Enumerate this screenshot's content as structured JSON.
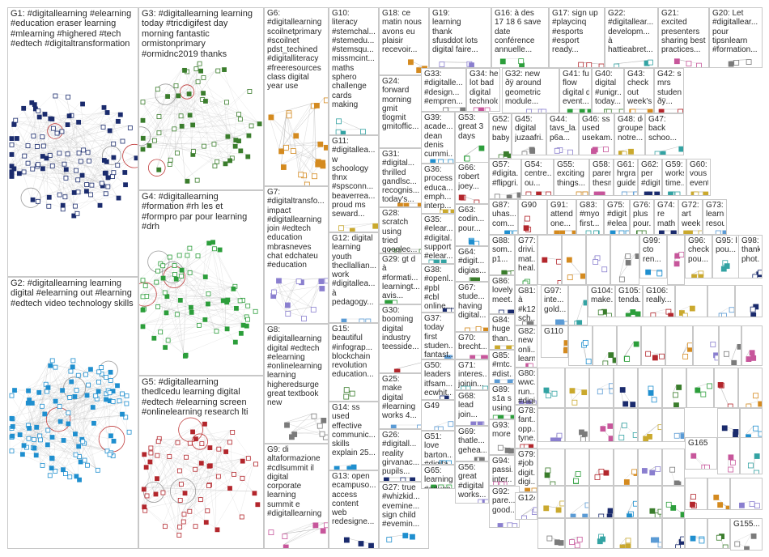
{
  "groups": [
    {
      "id": "G1",
      "label": "G1: #digitallearning #elearning\n#education eraser learning\n#mlearning #highered #tech\n#edtech #digitaltransformation"
    },
    {
      "id": "G2",
      "label": "G2: #digitallearning learning\ndigital #elearning out #learning\n#edtech video technology skills"
    },
    {
      "id": "G3",
      "label": "G3: #digitallearning learning\ntoday #tricdigifest day\nmorning fantastic\normistonprimary\n#ormidnc2019 thanks"
    },
    {
      "id": "G4",
      "label": "G4: #digitallearning\n#formation #rh les et\n#formpro par pour learning\n#drh"
    },
    {
      "id": "G5",
      "label": "G5: #digitallearning\nthedlcedu learning digital\n#edtech #elearning screen\n#onlinelearning research lti"
    },
    {
      "id": "G6",
      "label": "G6:\n#digitallearning\nscoilnetprimary\n#scoilnet\npdst_techined\n#digitalliteracy\n#freeresources\nclass digital\nyear use"
    },
    {
      "id": "G7",
      "label": "G7:\n#digitaltransfo...\nimpact\n#digitallearning\njoin #edtech\neducation\nmbrasneves\nchat edchateu\n#education"
    },
    {
      "id": "G8",
      "label": "G8:\n#digitallearning\ndigital #edtech\n#elearning\n#onlinelearning\nlearning\nhigheredsurge\ngreat textbook\nnew"
    },
    {
      "id": "G9",
      "label": "G9: di\naltaformazione\n#cdlsummit il\ndigital\ncorporate\nlearning\nsummit e\n#digitallearning"
    },
    {
      "id": "G10",
      "label": "G10:\nliteracy\n#stemchal...\n#stemedu...\n#stemsqu...\nmissmcint...\nmaths\nsphero\nchallenge\ncards\nmaking"
    },
    {
      "id": "G11",
      "label": "G11:\n#digitallea...\nw\nschoology\nthnx\n#spsconn...\nbeaverrea...\nproud ms\nseward..."
    },
    {
      "id": "G12",
      "label": "G12: digital\nlearning\nyouth\nthecllallian...\nwork\n#digitallea...\nà\npedagogy..."
    },
    {
      "id": "G13",
      "label": "G13: open\necampuso...\naccess\ncontent\nweb\nredesigne..."
    },
    {
      "id": "G14",
      "label": "G14: ss\nused\neffective\ncommunic...\nskills\nexplain 25..."
    },
    {
      "id": "G15",
      "label": "G15:\nbeautiful\n#infograp...\nblockchain\nrevolution\neducation..."
    },
    {
      "id": "G16",
      "label": "G16: à des\n17 18 6 save\ndate\nconférence\nannuelle..."
    },
    {
      "id": "G17",
      "label": "G17: sign up\n#playcinq\n#esports\n#esport\nready..."
    },
    {
      "id": "G18",
      "label": "G18: ce\nmatin nous\navons eu\nplaisir\nrecevoir..."
    },
    {
      "id": "G19",
      "label": "G19:\nlearning\nthank\nsfusddot lots\ndigital faire..."
    },
    {
      "id": "G20",
      "label": "G20: Let\n#digitallear...\npour\ntipsnlearn\n#formation..."
    },
    {
      "id": "G21",
      "label": "G21:\nexcited\npresenters\nsharing best\npractices..."
    },
    {
      "id": "G22",
      "label": "G22:\n#digitallear...\ndevelopm...\nà\nhattieabret..."
    },
    {
      "id": "G24",
      "label": "G24:\nforward\nmorning\ngmit\ntlogmit\ngmitoffic..."
    },
    {
      "id": "G25",
      "label": "G25:\nmake\ndigital\n#learning\nworks 4..."
    },
    {
      "id": "G26",
      "label": "G26:\n#digitall...\nreality\ngirvanac...\npupils..."
    },
    {
      "id": "G27",
      "label": "G27: true\n#whizkid...\nevemine...\nsign child\n#evemin..."
    },
    {
      "id": "G28",
      "label": "G28:\nscratch\nusing\ntried\ngooglec..."
    },
    {
      "id": "G29",
      "label": "G29: gt d\nà\n#formati...\nlearningt...\navis..."
    },
    {
      "id": "G30",
      "label": "G30:\nbooming\ndigital\nindustry\nteesside..."
    },
    {
      "id": "G31",
      "label": "G31:\n#digital...\nthrilled\ngandlsc...\nrecognis...\ntoday's..."
    },
    {
      "id": "G32",
      "label": "G32: new\nðÿ around\ngeometric\nmodule..."
    },
    {
      "id": "G33",
      "label": "G33:\n#digitalle...\n#design...\n#empren..."
    },
    {
      "id": "G34",
      "label": "G34: hear\nlot bad\ndigital\ntechnolo..."
    },
    {
      "id": "G35",
      "label": "G35:\n#elear...\n#digital...\nsupport\n#elear..."
    },
    {
      "id": "G36",
      "label": "G36:\nprocess\neduca...\nemph...\ninterp..."
    },
    {
      "id": "G37",
      "label": "G37:\ntoday\nfirst\nstuden...\nfantast..."
    },
    {
      "id": "G38",
      "label": "G38:\n#openl...\n#pbl\n#cbl\nonline..."
    },
    {
      "id": "G39",
      "label": "G39:\nacade...\ndean\ndenis\ncummi..."
    },
    {
      "id": "G40",
      "label": "G40:\ndigital\n#unigr...\ntoday..."
    },
    {
      "id": "G41",
      "label": "G41: full\nflow\ndigital d\nevent..."
    },
    {
      "id": "G42",
      "label": "G42: s\nmrs\nstudents\nðÿ..."
    },
    {
      "id": "G43",
      "label": "G43:\ncheck\nout\nweek's..."
    },
    {
      "id": "G44",
      "label": "G44:\ntavs_la...\np6a..."
    },
    {
      "id": "G45",
      "label": "G45:\ndigital\njuzaafri..."
    },
    {
      "id": "G46",
      "label": "G46: ss\nused\nusekam..."
    },
    {
      "id": "G47",
      "label": "G47:\nback\nschoo..."
    },
    {
      "id": "G48",
      "label": "G48: des\ngroupei...\nnotre..."
    },
    {
      "id": "G49",
      "label": "G49"
    },
    {
      "id": "G50",
      "label": "G50:\nleaders\nitfsam...\necwhit..."
    },
    {
      "id": "G51",
      "label": "G51:\nlove\nbarton...\n#digita..."
    },
    {
      "id": "G52",
      "label": "G52: à\nnew\nbaby..."
    },
    {
      "id": "G53",
      "label": "G53:\ngreat 3\ndays"
    },
    {
      "id": "G54",
      "label": "G54:\ncentre...\nou..."
    },
    {
      "id": "G55",
      "label": "G55:\nexciting\nthings..."
    },
    {
      "id": "G56",
      "label": "G56:\ngreat\n#digital\nworks..."
    },
    {
      "id": "G57",
      "label": "G57:\n#digita...\n#flipgri..."
    },
    {
      "id": "G58",
      "label": "G58:\nparents\nthesm..."
    },
    {
      "id": "G59",
      "label": "G59:\nworks...\ntime..."
    },
    {
      "id": "G60",
      "label": "G60:\nvous\nevent..."
    },
    {
      "id": "G61",
      "label": "G61:\nhrgrap...\nguide..."
    },
    {
      "id": "G62",
      "label": "G62: di\nper\n#digita..."
    },
    {
      "id": "G63",
      "label": "G63:\ncodin...\npour..."
    },
    {
      "id": "G64",
      "label": "G64:\n#digit...\ndigias..."
    },
    {
      "id": "G65",
      "label": "G65:\nlearning\n#educa..."
    },
    {
      "id": "G66",
      "label": "G66:\nrobert\njoey..."
    },
    {
      "id": "G67",
      "label": "G67:\nstude...\nhaving\ndigital..."
    },
    {
      "id": "G68",
      "label": "G68:\nlead\njoin..."
    },
    {
      "id": "G69",
      "label": "G69:\nthatle...\ngeheа..."
    },
    {
      "id": "G70",
      "label": "G70:\nbrecht..."
    },
    {
      "id": "G71",
      "label": "G71:\ninteres...\njoinin..."
    },
    {
      "id": "G72",
      "label": "G72: 2\nart\nweek..."
    },
    {
      "id": "G73",
      "label": "G73: e\nlearni...\nresou..."
    },
    {
      "id": "G74",
      "label": "G74:\nre\nmath..."
    },
    {
      "id": "G75",
      "label": "G75:\n#digit...\n#elea..."
    },
    {
      "id": "G76",
      "label": "G76:\nplus\npour..."
    },
    {
      "id": "G77",
      "label": "G77:\ndrivi...\nmat...\nheal..."
    },
    {
      "id": "G78",
      "label": "G78:\nfant...\nopp...\ntyne..."
    },
    {
      "id": "G79",
      "label": "G79: new\n#job\ndigit...\ndigi..."
    },
    {
      "id": "G80",
      "label": "G80:\nwwc...\nrun...\n#digi..."
    },
    {
      "id": "G81",
      "label": "G81:\nà\n#k12\nsch..."
    },
    {
      "id": "G82",
      "label": "G82:\nnew\nonli...\nlearn..."
    },
    {
      "id": "G83",
      "label": "G83:\n#myo\nfirst..."
    },
    {
      "id": "G84",
      "label": "G84:\nhuge\nthan..."
    },
    {
      "id": "G85",
      "label": "G85:\n#mtc...\n#dist..."
    },
    {
      "id": "G86",
      "label": "G86:\nlovely\nmeet..."
    },
    {
      "id": "G87",
      "label": "G87:\nuhas...\ncom..."
    },
    {
      "id": "G88",
      "label": "G88:\nsom...\np1..."
    },
    {
      "id": "G89",
      "label": "G89:\ns1a s\nusing..."
    },
    {
      "id": "G90",
      "label": "G90"
    },
    {
      "id": "G91",
      "label": "G91:\nattend\none..."
    },
    {
      "id": "G92",
      "label": "G92:\npare...\ngood..."
    },
    {
      "id": "G93",
      "label": "G93:\nmore"
    },
    {
      "id": "G94",
      "label": "G94:\npassi...\ninter..."
    },
    {
      "id": "G95",
      "label": "G95: la\npou..."
    },
    {
      "id": "G96",
      "label": "G96:\ncheck\npou..."
    },
    {
      "id": "G97",
      "label": "G97:\ninte...\ngold..."
    },
    {
      "id": "G98",
      "label": "G98:\nthank\nphot..."
    },
    {
      "id": "G99",
      "label": "G99:\ncto\nren..."
    },
    {
      "id": "G104",
      "label": "G104:\nmake..."
    },
    {
      "id": "G105",
      "label": "G105:\ntenda..."
    },
    {
      "id": "G106",
      "label": "G106:\nreally..."
    },
    {
      "id": "G110",
      "label": "G110"
    },
    {
      "id": "G124",
      "label": "G124"
    },
    {
      "id": "G155",
      "label": "G155..."
    },
    {
      "id": "G165",
      "label": "G165"
    }
  ]
}
